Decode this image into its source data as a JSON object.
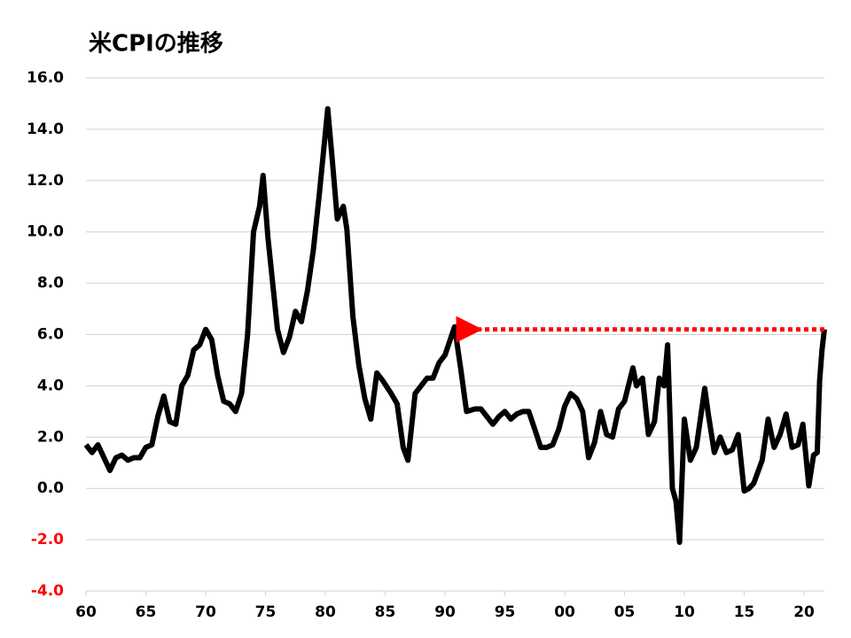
{
  "chart_data": {
    "type": "line",
    "title": "米CPIの推移",
    "x": [
      1960,
      1960.5,
      1961,
      1961.5,
      1962,
      1962.5,
      1963,
      1963.5,
      1964,
      1964.5,
      1965,
      1965.5,
      1966,
      1966.5,
      1967,
      1967.5,
      1968,
      1968.5,
      1969,
      1969.5,
      1970,
      1970.5,
      1971,
      1971.5,
      1972,
      1972.5,
      1973,
      1973.5,
      1974,
      1974.5,
      1974.8,
      1975.2,
      1975.6,
      1976,
      1976.5,
      1977,
      1977.5,
      1978,
      1978.5,
      1979,
      1979.5,
      1980.2,
      1980.6,
      1981,
      1981.5,
      1981.8,
      1982.3,
      1982.8,
      1983.3,
      1983.8,
      1984.3,
      1984.8,
      1985.5,
      1986,
      1986.5,
      1986.9,
      1987.5,
      1988,
      1988.5,
      1989,
      1989.5,
      1990,
      1990.8,
      1991.3,
      1991.8,
      1992.5,
      1993,
      1993.5,
      1994,
      1994.5,
      1995,
      1995.5,
      1996,
      1996.5,
      1997,
      1997.5,
      1998,
      1998.5,
      1999,
      1999.5,
      2000,
      2000.5,
      2001,
      2001.5,
      2002,
      2002.5,
      2003,
      2003.5,
      2004,
      2004.5,
      2005,
      2005.7,
      2006,
      2006.5,
      2007,
      2007.5,
      2007.9,
      2008.3,
      2008.6,
      2009,
      2009.3,
      2009.6,
      2010,
      2010.5,
      2011,
      2011.7,
      2012,
      2012.5,
      2013,
      2013.5,
      2014,
      2014.5,
      2015,
      2015.4,
      2015.8,
      2016.5,
      2017,
      2017.5,
      2018,
      2018.5,
      2019,
      2019.5,
      2019.9,
      2020.4,
      2020.8,
      2021.1,
      2021.3,
      2021.5,
      2021.7
    ],
    "series": [
      {
        "color": "#000000",
        "values": [
          1.7,
          1.4,
          1.7,
          1.2,
          0.7,
          1.2,
          1.3,
          1.1,
          1.2,
          1.2,
          1.6,
          1.7,
          2.8,
          3.6,
          2.6,
          2.5,
          4.0,
          4.4,
          5.4,
          5.6,
          6.2,
          5.8,
          4.4,
          3.4,
          3.3,
          3.0,
          3.7,
          6.0,
          10.0,
          11.0,
          12.2,
          9.8,
          8.0,
          6.2,
          5.3,
          5.9,
          6.9,
          6.5,
          7.7,
          9.3,
          11.5,
          14.8,
          12.7,
          10.5,
          11.0,
          10.1,
          6.7,
          4.8,
          3.5,
          2.7,
          4.5,
          4.2,
          3.7,
          3.3,
          1.6,
          1.1,
          3.7,
          4.0,
          4.3,
          4.3,
          4.9,
          5.2,
          6.3,
          4.7,
          3.0,
          3.1,
          3.1,
          2.8,
          2.5,
          2.8,
          3.0,
          2.7,
          2.9,
          3.0,
          3.0,
          2.3,
          1.6,
          1.6,
          1.7,
          2.3,
          3.2,
          3.7,
          3.5,
          3.0,
          1.2,
          1.8,
          3.0,
          2.1,
          2.0,
          3.1,
          3.4,
          4.7,
          4.0,
          4.3,
          2.1,
          2.6,
          4.3,
          4.0,
          5.6,
          0.0,
          -0.5,
          -2.1,
          2.7,
          1.1,
          1.6,
          3.9,
          2.9,
          1.4,
          2.0,
          1.4,
          1.5,
          2.1,
          -0.1,
          0.0,
          0.2,
          1.1,
          2.7,
          1.6,
          2.1,
          2.9,
          1.6,
          1.7,
          2.5,
          0.1,
          1.3,
          1.4,
          4.2,
          5.4,
          6.2
        ]
      }
    ],
    "xlim": [
      1960,
      2021.7
    ],
    "xticks": [
      {
        "value": 1960,
        "label": "60"
      },
      {
        "value": 1965,
        "label": "65"
      },
      {
        "value": 1970,
        "label": "70"
      },
      {
        "value": 1975,
        "label": "75"
      },
      {
        "value": 1980,
        "label": "80"
      },
      {
        "value": 1985,
        "label": "85"
      },
      {
        "value": 1990,
        "label": "90"
      },
      {
        "value": 1995,
        "label": "95"
      },
      {
        "value": 2000,
        "label": "00"
      },
      {
        "value": 2005,
        "label": "05"
      },
      {
        "value": 2010,
        "label": "10"
      },
      {
        "value": 2015,
        "label": "15"
      },
      {
        "value": 2020,
        "label": "20"
      }
    ],
    "ylim": [
      -4,
      16
    ],
    "yticks": [
      {
        "value": -4,
        "label": "-4.0"
      },
      {
        "value": -2,
        "label": "-2.0"
      },
      {
        "value": 0,
        "label": "0.0"
      },
      {
        "value": 2,
        "label": "2.0"
      },
      {
        "value": 4,
        "label": "4.0"
      },
      {
        "value": 6,
        "label": "6.0"
      },
      {
        "value": 8,
        "label": "8.0"
      },
      {
        "value": 10,
        "label": "10.0"
      },
      {
        "value": 12,
        "label": "12.0"
      },
      {
        "value": 14,
        "label": "14.0"
      },
      {
        "value": 16,
        "label": "16.0"
      }
    ],
    "negative_tick_color": "#ff0000",
    "grid": true,
    "annotations": [
      {
        "type": "arrow",
        "x_from": 2021.7,
        "x_to": 1991.3,
        "y": 6.2,
        "color": "#ff0000"
      }
    ]
  }
}
